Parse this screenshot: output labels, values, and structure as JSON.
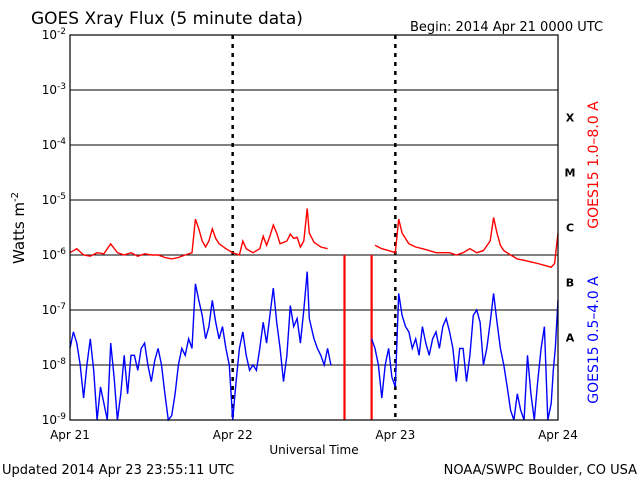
{
  "header": {
    "title": "GOES Xray Flux (5 minute data)",
    "begin": "Begin:  2014 Apr 21 0000 UTC"
  },
  "footer": {
    "updated": "Updated 2014 Apr 23 23:55:11 UTC",
    "source": "NOAA/SWPC Boulder, CO USA"
  },
  "colors": {
    "long_channel": "#ff0000",
    "short_channel": "#0000ff",
    "axes": "#000000"
  },
  "chart_data": {
    "type": "line",
    "title": "GOES Xray Flux (5 minute data)",
    "xlabel": "Universal Time",
    "ylabel": "Watts m",
    "ylabel_superscript": "-2",
    "yscale": "log",
    "ylim": [
      1e-09,
      0.01
    ],
    "xlim": [
      0,
      72
    ],
    "x_unit_note": "hours since 2014 Apr 21 0000 UTC",
    "y_ticks": [
      {
        "value": 1e-09,
        "base": "10",
        "exp": "-9"
      },
      {
        "value": 1e-08,
        "base": "10",
        "exp": "-8"
      },
      {
        "value": 1e-07,
        "base": "10",
        "exp": "-7"
      },
      {
        "value": 1e-06,
        "base": "10",
        "exp": "-6"
      },
      {
        "value": 1e-05,
        "base": "10",
        "exp": "-5"
      },
      {
        "value": 0.0001,
        "base": "10",
        "exp": "-4"
      },
      {
        "value": 0.001,
        "base": "10",
        "exp": "-3"
      },
      {
        "value": 0.01,
        "base": "10",
        "exp": "-2"
      }
    ],
    "x_ticks": [
      {
        "value": 0,
        "label": "Apr 21"
      },
      {
        "value": 24,
        "label": "Apr 22"
      },
      {
        "value": 48,
        "label": "Apr 23"
      },
      {
        "value": 72,
        "label": "Apr 24"
      }
    ],
    "flare_classes": [
      {
        "label": "X",
        "lo": 0.0001,
        "hi": 0.001
      },
      {
        "label": "M",
        "lo": 1e-05,
        "hi": 0.0001
      },
      {
        "label": "C",
        "lo": 1e-06,
        "hi": 1e-05
      },
      {
        "label": "B",
        "lo": 1e-07,
        "hi": 1e-06
      },
      {
        "label": "A",
        "lo": 1e-08,
        "hi": 1e-07
      }
    ],
    "grid": "horizontal lines at each decade; dashed vertical lines at day boundaries",
    "series": [
      {
        "name": "GOES15 1.0–8.0 A",
        "color": "#ff0000",
        "points": [
          [
            0,
            1.1e-06
          ],
          [
            1,
            1.3e-06
          ],
          [
            2,
            1e-06
          ],
          [
            3,
            9.5e-07
          ],
          [
            4,
            1.1e-06
          ],
          [
            5,
            1.05e-06
          ],
          [
            6,
            1.6e-06
          ],
          [
            7,
            1.1e-06
          ],
          [
            8,
            1e-06
          ],
          [
            9,
            1.1e-06
          ],
          [
            10,
            9.5e-07
          ],
          [
            11,
            1.05e-06
          ],
          [
            12,
            1e-06
          ],
          [
            13,
            1e-06
          ],
          [
            14,
            9e-07
          ],
          [
            15,
            8.5e-07
          ],
          [
            16,
            9e-07
          ],
          [
            17,
            1e-06
          ],
          [
            18,
            1.1e-06
          ],
          [
            18.5,
            4.5e-06
          ],
          [
            19,
            3e-06
          ],
          [
            19.5,
            1.8e-06
          ],
          [
            20,
            1.4e-06
          ],
          [
            20.5,
            1.8e-06
          ],
          [
            21,
            3e-06
          ],
          [
            21.5,
            2e-06
          ],
          [
            22,
            1.6e-06
          ],
          [
            23,
            1.3e-06
          ],
          [
            24,
            1.1e-06
          ],
          [
            25,
            1e-06
          ],
          [
            25.5,
            1.8e-06
          ],
          [
            26,
            1.3e-06
          ],
          [
            27,
            1.1e-06
          ],
          [
            28,
            1.3e-06
          ],
          [
            28.5,
            2.2e-06
          ],
          [
            29,
            1.5e-06
          ],
          [
            29.5,
            2.2e-06
          ],
          [
            30,
            3.5e-06
          ],
          [
            30.5,
            2.5e-06
          ],
          [
            31,
            1.6e-06
          ],
          [
            32,
            1.8e-06
          ],
          [
            32.5,
            2.4e-06
          ],
          [
            33,
            2e-06
          ],
          [
            33.5,
            2.1e-06
          ],
          [
            34,
            1.4e-06
          ],
          [
            34.5,
            1.8e-06
          ],
          [
            35,
            7e-06
          ],
          [
            35.3,
            2.5e-06
          ],
          [
            36,
            1.7e-06
          ],
          [
            37,
            1.4e-06
          ],
          [
            38,
            1.3e-06
          ],
          [
            39,
            1.2e-06
          ],
          [
            40,
            1.6e-06
          ],
          [
            41,
            2e-06
          ],
          [
            42,
            1.7e-06
          ],
          [
            43,
            1.5e-06
          ],
          [
            44,
            1.8e-06
          ],
          [
            45,
            1.5e-06
          ],
          [
            46,
            1.3e-06
          ],
          [
            47,
            1.2e-06
          ],
          [
            48,
            1.1e-06
          ],
          [
            48.5,
            4.5e-06
          ],
          [
            49,
            2.5e-06
          ],
          [
            50,
            1.6e-06
          ],
          [
            51,
            1.4e-06
          ],
          [
            52,
            1.3e-06
          ],
          [
            53,
            1.2e-06
          ],
          [
            54,
            1.1e-06
          ],
          [
            55,
            1.1e-06
          ],
          [
            56,
            1.1e-06
          ],
          [
            57,
            1e-06
          ],
          [
            58,
            1.1e-06
          ],
          [
            59,
            1.3e-06
          ],
          [
            60,
            1.1e-06
          ],
          [
            61,
            1.2e-06
          ],
          [
            62,
            1.8e-06
          ],
          [
            62.5,
            4.8e-06
          ],
          [
            63,
            2.5e-06
          ],
          [
            63.5,
            1.5e-06
          ],
          [
            64,
            1.2e-06
          ],
          [
            65,
            1e-06
          ],
          [
            66,
            8.5e-07
          ],
          [
            67,
            8e-07
          ],
          [
            68,
            7.5e-07
          ],
          [
            69,
            7e-07
          ],
          [
            70,
            6.5e-07
          ],
          [
            71,
            6e-07
          ],
          [
            71.5,
            7e-07
          ],
          [
            72,
            2.5e-06
          ]
        ],
        "breaks": [
          [
            38.5,
            44.5
          ]
        ],
        "spikes": [
          {
            "x": 40.5,
            "y_low": 1e-09,
            "y_high": 1e-06
          },
          {
            "x": 44.5,
            "y_low": 1e-09,
            "y_high": 1e-06
          }
        ]
      },
      {
        "name": "GOES15 0.5–4.0 A",
        "color": "#0000ff",
        "points": [
          [
            0,
            2e-08
          ],
          [
            0.5,
            4e-08
          ],
          [
            1,
            2.5e-08
          ],
          [
            1.5,
            1e-08
          ],
          [
            2,
            2.5e-09
          ],
          [
            2.5,
            1e-08
          ],
          [
            3,
            3e-08
          ],
          [
            3.5,
            8e-09
          ],
          [
            4,
            1e-09
          ],
          [
            4.5,
            4e-09
          ],
          [
            5,
            2e-09
          ],
          [
            5.5,
            1e-09
          ],
          [
            6,
            2.5e-08
          ],
          [
            6.5,
            6e-09
          ],
          [
            7,
            1e-09
          ],
          [
            7.5,
            3e-09
          ],
          [
            8,
            1.5e-08
          ],
          [
            8.5,
            3e-09
          ],
          [
            9,
            1.5e-08
          ],
          [
            9.5,
            1.5e-08
          ],
          [
            10,
            8e-09
          ],
          [
            10.5,
            2e-08
          ],
          [
            11,
            2.5e-08
          ],
          [
            11.5,
            1e-08
          ],
          [
            12,
            5e-09
          ],
          [
            12.5,
            1.2e-08
          ],
          [
            13,
            2e-08
          ],
          [
            13.5,
            1e-08
          ],
          [
            14,
            3e-09
          ],
          [
            14.5,
            1e-09
          ],
          [
            15,
            1.2e-09
          ],
          [
            15.5,
            3e-09
          ],
          [
            16,
            1e-08
          ],
          [
            16.5,
            2e-08
          ],
          [
            17,
            1.5e-08
          ],
          [
            17.5,
            3e-08
          ],
          [
            18,
            2e-08
          ],
          [
            18.5,
            3e-07
          ],
          [
            19,
            1.5e-07
          ],
          [
            19.5,
            8e-08
          ],
          [
            20,
            3e-08
          ],
          [
            20.5,
            5e-08
          ],
          [
            21,
            1.5e-07
          ],
          [
            21.5,
            6e-08
          ],
          [
            22,
            3e-08
          ],
          [
            22.5,
            5e-08
          ],
          [
            23,
            2e-08
          ],
          [
            23.5,
            1e-08
          ],
          [
            24,
            1e-09
          ],
          [
            24.5,
            5e-09
          ],
          [
            25,
            2e-08
          ],
          [
            25.5,
            4e-08
          ],
          [
            26,
            1.5e-08
          ],
          [
            26.5,
            8e-09
          ],
          [
            27,
            1e-08
          ],
          [
            27.5,
            8e-09
          ],
          [
            28,
            2e-08
          ],
          [
            28.5,
            6e-08
          ],
          [
            29,
            2.5e-08
          ],
          [
            29.5,
            8e-08
          ],
          [
            30,
            2.5e-07
          ],
          [
            30.5,
            6e-08
          ],
          [
            31,
            2e-08
          ],
          [
            31.5,
            5e-09
          ],
          [
            32,
            1.5e-08
          ],
          [
            32.5,
            1.2e-07
          ],
          [
            33,
            5e-08
          ],
          [
            33.5,
            7e-08
          ],
          [
            34,
            2.5e-08
          ],
          [
            34.5,
            1e-07
          ],
          [
            35,
            5e-07
          ],
          [
            35.3,
            7e-08
          ],
          [
            36,
            3e-08
          ],
          [
            36.5,
            2e-08
          ],
          [
            37,
            1.5e-08
          ],
          [
            37.5,
            1e-08
          ],
          [
            38,
            2e-08
          ],
          [
            38.5,
            1e-08
          ]
        ],
        "points_b": [
          [
            44.5,
            3e-08
          ],
          [
            45,
            2e-08
          ],
          [
            45.5,
            1e-08
          ],
          [
            46,
            2.5e-09
          ],
          [
            46.5,
            1e-08
          ],
          [
            47,
            2e-08
          ],
          [
            47.5,
            6e-09
          ],
          [
            48,
            4e-09
          ],
          [
            48.5,
            2e-07
          ],
          [
            49,
            8e-08
          ],
          [
            49.5,
            5e-08
          ],
          [
            50,
            4e-08
          ],
          [
            50.5,
            2e-08
          ],
          [
            51,
            3e-08
          ],
          [
            51.5,
            1.5e-08
          ],
          [
            52,
            5e-08
          ],
          [
            52.5,
            2.5e-08
          ],
          [
            53,
            1.5e-08
          ],
          [
            53.5,
            3e-08
          ],
          [
            54,
            4e-08
          ],
          [
            54.5,
            2e-08
          ],
          [
            55,
            5e-08
          ],
          [
            55.5,
            7e-08
          ],
          [
            56,
            4e-08
          ],
          [
            56.5,
            2e-08
          ],
          [
            57,
            5e-09
          ],
          [
            57.5,
            2e-08
          ],
          [
            58,
            2e-08
          ],
          [
            58.5,
            5e-09
          ],
          [
            59,
            1.5e-08
          ],
          [
            59.5,
            8e-08
          ],
          [
            60,
            1e-07
          ],
          [
            60.5,
            6e-08
          ],
          [
            61,
            1e-08
          ],
          [
            61.5,
            2e-08
          ],
          [
            62,
            6e-08
          ],
          [
            62.5,
            2e-07
          ],
          [
            63,
            6e-08
          ],
          [
            63.5,
            2e-08
          ],
          [
            64,
            1e-08
          ],
          [
            64.5,
            4e-09
          ],
          [
            65,
            1.5e-09
          ],
          [
            65.5,
            1e-09
          ],
          [
            66,
            3e-09
          ],
          [
            66.5,
            1.5e-09
          ],
          [
            67,
            1e-09
          ],
          [
            67.5,
            1.5e-08
          ],
          [
            68,
            3e-09
          ],
          [
            68.5,
            1e-09
          ],
          [
            69,
            5e-09
          ],
          [
            69.5,
            2e-08
          ],
          [
            70,
            5e-08
          ],
          [
            70.5,
            1e-09
          ],
          [
            71,
            2e-09
          ],
          [
            71.3,
            8e-09
          ],
          [
            71.6,
            2e-08
          ],
          [
            72,
            1.5e-07
          ]
        ]
      }
    ]
  }
}
